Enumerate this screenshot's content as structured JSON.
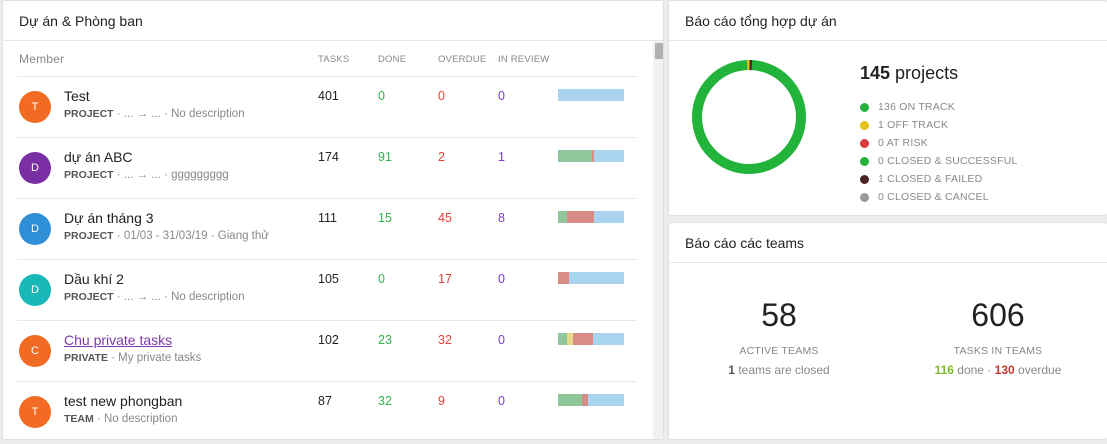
{
  "projects_card": {
    "title": "Dự án & Phòng ban",
    "columns": {
      "member": "Member",
      "tasks": "TASKS",
      "done": "DONE",
      "overdue": "OVERDUE",
      "in_review": "IN REVIEW"
    },
    "rows": [
      {
        "initial": "T",
        "avatar_color": "#f26b22",
        "name": "Test",
        "type": "PROJECT",
        "desc": " · ... → ... · No description",
        "tasks": "401",
        "done": "0",
        "overdue": "0",
        "review": "0",
        "progress": {
          "done": 0,
          "other": 0,
          "overdue": 0,
          "remaining": 1
        }
      },
      {
        "initial": "D",
        "avatar_color": "#7b2fa5",
        "name": "dự án ABC",
        "type": "PROJECT",
        "desc": " · ... → ... · ggggggggg",
        "tasks": "174",
        "done": "91",
        "overdue": "2",
        "review": "1",
        "progress": {
          "done": 0.52,
          "other": 0,
          "overdue": 0.02,
          "remaining": 0.46
        }
      },
      {
        "initial": "D",
        "avatar_color": "#2e8fd6",
        "name": "Dự án tháng 3",
        "type": "PROJECT",
        "desc": " · 01/03 - 31/03/19 · Giang thử",
        "tasks": "111",
        "done": "15",
        "overdue": "45",
        "review": "8",
        "progress": {
          "done": 0.13,
          "other": 0,
          "overdue": 0.41,
          "remaining": 0.46
        }
      },
      {
        "initial": "D",
        "avatar_color": "#19b8b8",
        "name": "Dầu khí 2",
        "type": "PROJECT",
        "desc": " · ... → ... · No description",
        "tasks": "105",
        "done": "0",
        "overdue": "17",
        "review": "0",
        "progress": {
          "done": 0,
          "other": 0,
          "overdue": 0.17,
          "remaining": 0.83
        }
      },
      {
        "initial": "C",
        "avatar_color": "#f26b22",
        "name": "Chu private tasks",
        "type": "PRIVATE",
        "desc": " · My private tasks",
        "tasks": "102",
        "done": "23",
        "overdue": "32",
        "review": "0",
        "link": true,
        "progress": {
          "done": 0.13,
          "other": 0.09,
          "overdue": 0.31,
          "remaining": 0.47
        }
      },
      {
        "initial": "T",
        "avatar_color": "#f26b22",
        "name": "test new phongban",
        "type": "TEAM",
        "desc": " · No description",
        "tasks": "87",
        "done": "32",
        "overdue": "9",
        "review": "0",
        "progress": {
          "done": 0.36,
          "other": 0,
          "overdue": 0.1,
          "remaining": 0.54
        }
      }
    ]
  },
  "summary_card": {
    "title": "Báo cáo tổng hợp dự án",
    "total_count": "145",
    "total_label": " projects",
    "legend": [
      {
        "label": "136 ON TRACK",
        "color": "#22b33a",
        "value": 136
      },
      {
        "label": "1 OFF TRACK",
        "color": "#e3c21a",
        "value": 1
      },
      {
        "label": "0 AT RISK",
        "color": "#d93a3a",
        "value": 0
      },
      {
        "label": "0 CLOSED & SUCCESSFUL",
        "color": "#22b33a",
        "value": 0
      },
      {
        "label": "1 CLOSED & FAILED",
        "color": "#4a2222",
        "value": 1
      },
      {
        "label": "0 CLOSED & CANCEL",
        "color": "#999999",
        "value": 0
      }
    ]
  },
  "teams_card": {
    "title": "Báo cáo các teams",
    "active": {
      "value": "58",
      "label": "ACTIVE TEAMS",
      "sub_num": "1",
      "sub_text": " teams are closed"
    },
    "tasks": {
      "value": "606",
      "label": "TASKS IN TEAMS",
      "done_num": "116",
      "done_text": " done · ",
      "overdue_num": "130",
      "overdue_text": " overdue"
    }
  },
  "colors": {
    "done": "#8fc79a",
    "other": "#e8d98a",
    "overdue": "#d98b86",
    "remaining": "#a9d3ef",
    "ring": "#22b33a"
  }
}
